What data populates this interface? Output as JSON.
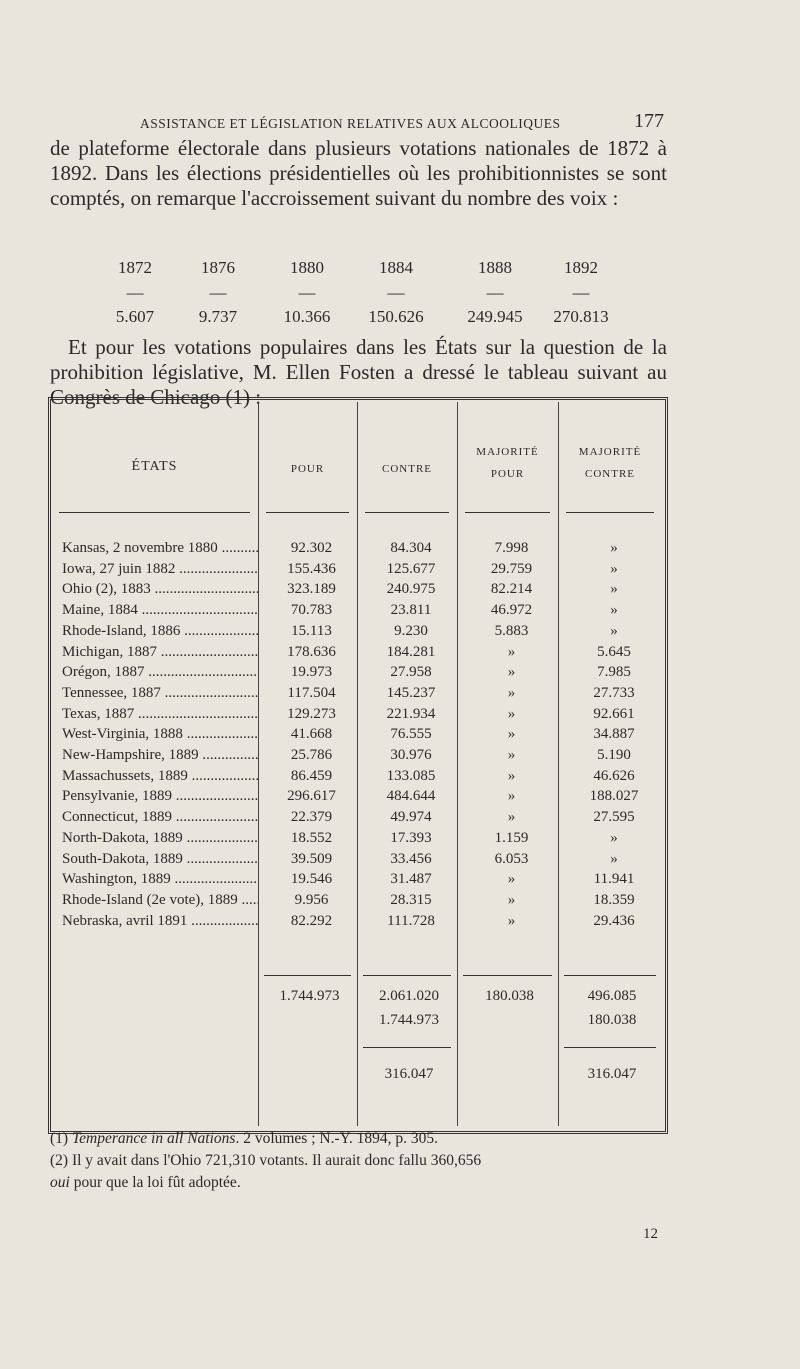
{
  "header": {
    "running_head": "ASSISTANCE ET LÉGISLATION RELATIVES AUX ALCOOLIQUES",
    "page_number": "177"
  },
  "paragraph_1": "de plateforme électorale dans plusieurs votations nationales de 1872 à 1892. Dans les élections présidentielles où les prohibitionnistes se sont comptés, on remarque l'accroissement suivant du nombre des voix :",
  "votes": {
    "years": [
      "1872",
      "1876",
      "1880",
      "1884",
      "1888",
      "1892"
    ],
    "separator": "—",
    "values": [
      "5.607",
      "9.737",
      "10.366",
      "150.626",
      "249.945",
      "270.813"
    ]
  },
  "paragraph_2": "Et pour les votations populaires dans les États sur la question de la prohibition législative, M. Ellen Fosten a dressé le tableau suivant au Congrès de Chicago (1) :",
  "table": {
    "headers": [
      "ÉTATS",
      "POUR",
      "CONTRE",
      "MAJORITÉ POUR",
      "MAJORITÉ CONTRE"
    ],
    "rows": [
      [
        "Kansas, 2 novembre 1880",
        "92.302",
        "84.304",
        "7.998",
        "»"
      ],
      [
        "Iowa, 27 juin 1882",
        "155.436",
        "125.677",
        "29.759",
        "»"
      ],
      [
        "Ohio (2), 1883",
        "323.189",
        "240.975",
        "82.214",
        "»"
      ],
      [
        "Maine, 1884",
        "70.783",
        "23.811",
        "46.972",
        "»"
      ],
      [
        "Rhode-Island, 1886",
        "15.113",
        "9.230",
        "5.883",
        "»"
      ],
      [
        "Michigan, 1887",
        "178.636",
        "184.281",
        "»",
        "5.645"
      ],
      [
        "Orégon, 1887",
        "19.973",
        "27.958",
        "»",
        "7.985"
      ],
      [
        "Tennessee, 1887",
        "117.504",
        "145.237",
        "»",
        "27.733"
      ],
      [
        "Texas, 1887",
        "129.273",
        "221.934",
        "»",
        "92.661"
      ],
      [
        "West-Virginia, 1888",
        "41.668",
        "76.555",
        "»",
        "34.887"
      ],
      [
        "New-Hampshire, 1889",
        "25.786",
        "30.976",
        "»",
        "5.190"
      ],
      [
        "Massachussets, 1889",
        "86.459",
        "133.085",
        "»",
        "46.626"
      ],
      [
        "Pensylvanie, 1889",
        "296.617",
        "484.644",
        "»",
        "188.027"
      ],
      [
        "Connecticut, 1889",
        "22.379",
        "49.974",
        "»",
        "27.595"
      ],
      [
        "North-Dakota, 1889",
        "18.552",
        "17.393",
        "1.159",
        "»"
      ],
      [
        "South-Dakota, 1889",
        "39.509",
        "33.456",
        "6.053",
        "»"
      ],
      [
        "Washington, 1889",
        "19.546",
        "31.487",
        "»",
        "11.941"
      ],
      [
        "Rhode-Island (2e vote), 1889",
        "9.956",
        "28.315",
        "»",
        "18.359"
      ],
      [
        "Nebraska, avril 1891",
        "82.292",
        "111.728",
        "»",
        "29.436"
      ]
    ],
    "totals": [
      {
        "pour": "1.744.973",
        "contre": "2.061.020",
        "majorite_pour": "180.038",
        "majorite_contre": "496.085"
      },
      {
        "contre": "1.744.973",
        "majorite_contre": "180.038"
      },
      {
        "contre": "316.047",
        "majorite_contre": "316.047"
      }
    ]
  },
  "footnotes": [
    {
      "marker": "(1)",
      "title": "Temperance in all Nations",
      "text": ". 2 volumes ; N.-Y. 1894, p. 305."
    },
    {
      "marker": "(2)",
      "text": "Il y avait dans l'Ohio 721,310 votants. Il aurait donc fallu 360,656",
      "emphasis": "oui",
      "text_end": "pour que la loi fût adoptée."
    }
  ],
  "signature": "12"
}
